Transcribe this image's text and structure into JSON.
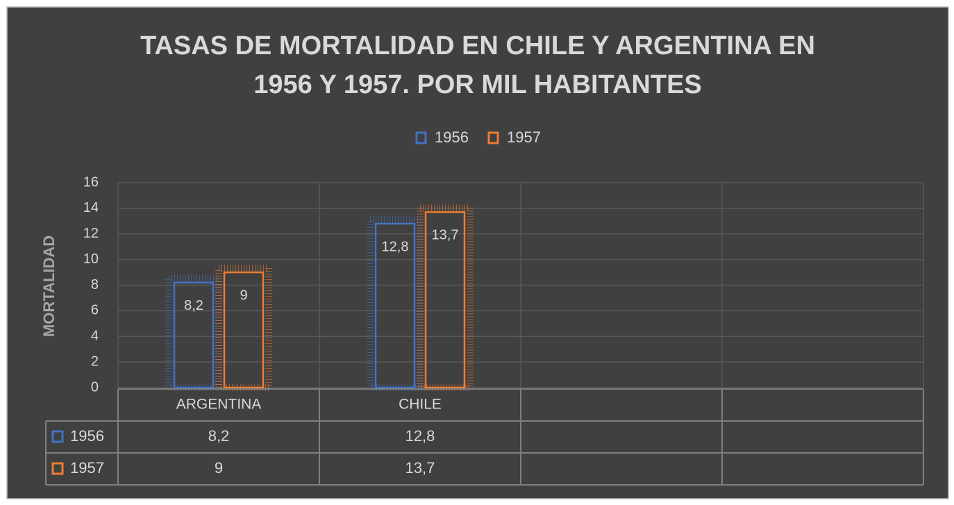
{
  "chart_data": {
    "type": "bar",
    "title": [
      "TASAS DE MORTALIDAD EN CHILE Y ARGENTINA EN",
      "1956 Y 1957. POR MIL HABITANTES"
    ],
    "y_label": "MORTALIDAD",
    "categories": [
      "ARGENTINA",
      "CHILE",
      null,
      null
    ],
    "series": [
      {
        "name": "1956",
        "color": "#4472c4",
        "values": [
          8.2,
          12.8,
          null,
          null
        ],
        "value_labels": [
          "8,2",
          "12,8",
          null,
          null
        ]
      },
      {
        "name": "1957",
        "color": "#ed7d31",
        "values": [
          9,
          13.7,
          null,
          null
        ],
        "value_labels": [
          "9",
          "13,7",
          null,
          null
        ]
      }
    ],
    "ylim": [
      0,
      16
    ],
    "yticks": [
      0,
      2,
      4,
      6,
      8,
      10,
      12,
      14,
      16
    ],
    "grid": true,
    "legend": "top",
    "data_table": true
  }
}
